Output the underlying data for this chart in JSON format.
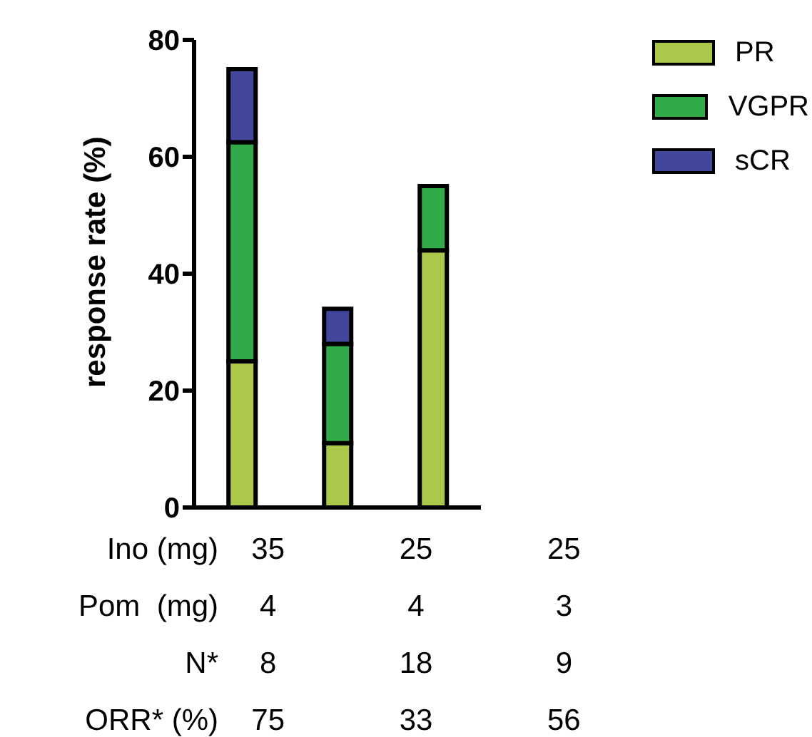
{
  "chart_data": {
    "type": "bar",
    "stacked": true,
    "ylabel": "response rate (%)",
    "categories": [
      null,
      null,
      null
    ],
    "series": [
      {
        "name": "PR",
        "color": "#acc84a",
        "values": [
          25,
          11,
          44
        ]
      },
      {
        "name": "VGPR",
        "color": "#31ab4a",
        "values": [
          37.5,
          17,
          11
        ]
      },
      {
        "name": "sCR",
        "color": "#43479c",
        "values": [
          12.5,
          6,
          null
        ]
      }
    ],
    "ylim": [
      0,
      80
    ],
    "yticks": [
      0,
      20,
      40,
      60,
      80
    ],
    "grid": false,
    "legend": "top right",
    "annotations": [
      "Ino (mg)",
      "35",
      "25",
      "25",
      "Pom  (mg)",
      "4",
      "4",
      "3",
      "N*",
      "8",
      "18",
      "9",
      "ORR* (%)",
      "75",
      "33",
      "56"
    ]
  }
}
